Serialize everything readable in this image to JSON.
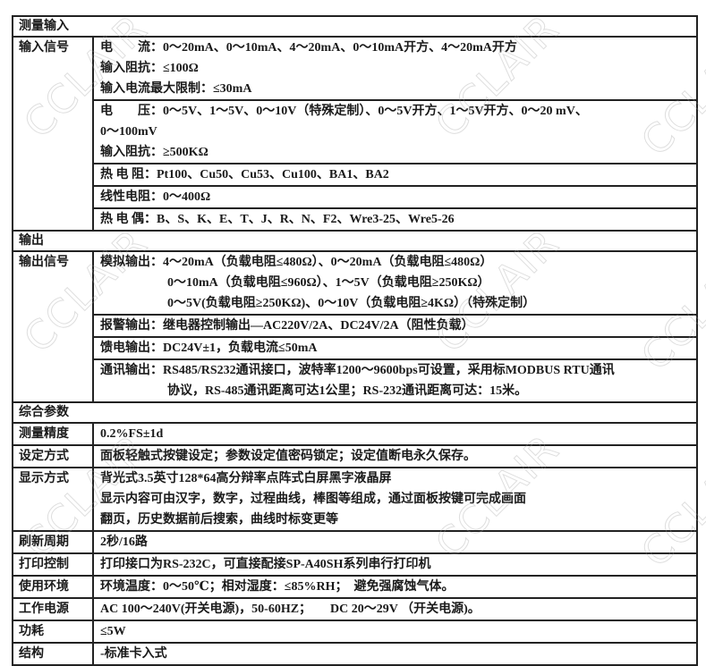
{
  "watermark": "CCLAIR",
  "sections": [
    {
      "title": "测量输入",
      "rows": [
        {
          "label": "输入信号",
          "blocks": [
            {
              "lines": [
                "电　　流：0～20mA、0～10mA、4～20mA、0～10mA开方、4～20mA开方",
                "输入阻抗：≤100Ω",
                "输入电流最大限制：≤30mA"
              ]
            },
            {
              "lines": [
                "电　　压：0～5V、1～5V、0～10V（特殊定制）、0～5V开方、1～5V开方、0～20 mV、",
                "0～100mV",
                "输入阻抗：≥500KΩ"
              ]
            },
            {
              "lines": [
                "热 电 阻：Pt100、Cu50、Cu53、Cu100、BA1、BA2"
              ]
            },
            {
              "lines": [
                "线性电阻：0～400Ω"
              ]
            },
            {
              "lines": [
                "热 电 偶：B、S、K、E、T、J、R、N、F2、Wre3-25、Wre5-26"
              ]
            }
          ]
        }
      ]
    },
    {
      "title": "输出",
      "rows": [
        {
          "label": "输出信号",
          "blocks": [
            {
              "lead": "模拟输出：",
              "lines": [
                "4～20mA（负载电阻≤480Ω）、0～20mA（负载电阻≤480Ω）",
                "0～10mA（负载电阻≤960Ω）、1～5V（负载电阻≥250KΩ）",
                "0～5V(负载电阻≥250KΩ)、0～10V（负载电阻≥4KΩ）（特殊定制）"
              ]
            },
            {
              "lines": [
                "报警输出：继电器控制输出—AC220V/2A、DC24V/2A（阻性负载）"
              ]
            },
            {
              "lines": [
                "馈电输出：DC24V±1，负载电流≤50mA"
              ]
            },
            {
              "lead": "通讯输出：",
              "lines": [
                "RS485/RS232通讯接口，波特率1200～9600bps可设置，采用标MODBUS RTU通讯",
                "协议，RS-485通讯距离可达1公里；RS-232通讯距离可达：15米。"
              ]
            }
          ]
        }
      ]
    },
    {
      "title": "综合参数",
      "rows": [
        {
          "label": "测量精度",
          "blocks": [
            {
              "lines": [
                "0.2%FS±1d"
              ]
            }
          ]
        },
        {
          "label": "设定方式",
          "blocks": [
            {
              "lines": [
                "面板轻触式按键设定；参数设定值密码锁定；设定值断电永久保存。"
              ]
            }
          ]
        },
        {
          "label": "显示方式",
          "blocks": [
            {
              "lines": [
                "背光式3.5英寸128*64高分辩率点阵式白屏黑字液晶屏",
                "显示内容可由汉字，数字，过程曲线，棒图等组成，通过面板按键可完成画面",
                "翻页，历史数据前后搜索，曲线时标变更等"
              ]
            }
          ]
        },
        {
          "label": "刷新周期",
          "blocks": [
            {
              "lines": [
                "2秒/16路"
              ]
            }
          ]
        },
        {
          "label": "打印控制",
          "blocks": [
            {
              "lines": [
                "打印接口为RS-232C，可直接配接SP-A40SH系列串行打印机"
              ]
            }
          ]
        },
        {
          "label": "使用环境",
          "blocks": [
            {
              "lines": [
                "环境温度：0～50℃；相对湿度：≤85%RH；  避免强腐蚀气体。"
              ]
            }
          ]
        },
        {
          "label": "工作电源",
          "blocks": [
            {
              "lines": [
                "AC 100～240V(开关电源)，50-60HZ；      DC 20～29V （开关电源)。"
              ]
            }
          ]
        },
        {
          "label": "功耗",
          "blocks": [
            {
              "lines": [
                "≤5W"
              ]
            }
          ]
        },
        {
          "label": "结构",
          "blocks": [
            {
              "lines": [
                "-标准卡入式"
              ]
            }
          ]
        }
      ]
    }
  ]
}
